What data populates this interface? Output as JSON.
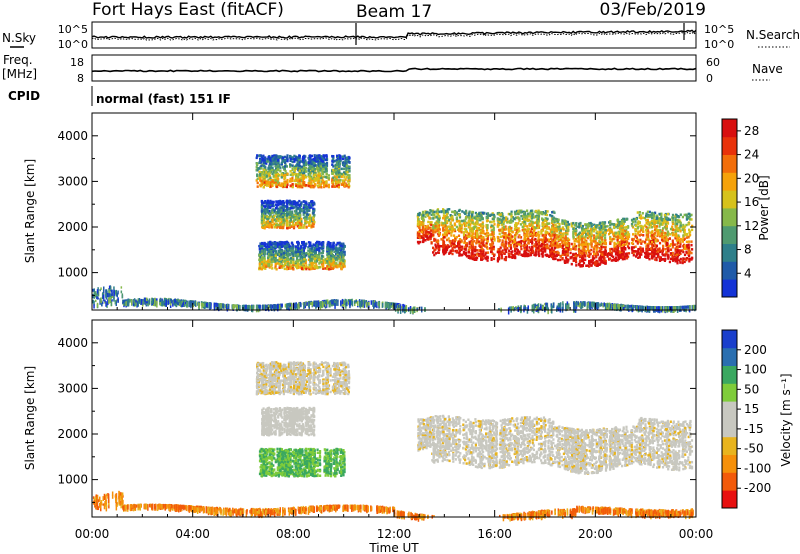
{
  "header": {
    "title": "Fort Hays East (fitACF)",
    "beam": "Beam 17",
    "date": "03/Feb/2019"
  },
  "status_panels": {
    "nsky_label": "N.Sky",
    "nsearch_label": "N.Search",
    "noise_ticks": [
      "10^5",
      "10^0"
    ],
    "freq_label_1": "Freq.",
    "freq_label_2": "[MHz]",
    "freq_ticks": [
      "18",
      "8"
    ],
    "nave_label": "Nave",
    "nave_ticks": [
      "60",
      "0"
    ],
    "cpid_label": "CPID",
    "cpid_value": "normal (fast) 151 IF"
  },
  "colors": {
    "power_scale": [
      "#1433d6",
      "#1f5aa8",
      "#2e7f8a",
      "#4f9a70",
      "#86b84a",
      "#d6c21c",
      "#f5a20a",
      "#f26e0a",
      "#e8320a",
      "#d80f0f"
    ],
    "velocity_scale": [
      "#e81010",
      "#f25a0a",
      "#f5900a",
      "#e8b41e",
      "#c8c8c0",
      "#c8c8c0",
      "#7fcc3a",
      "#3aa860",
      "#2a6fb0",
      "#1a3fcc"
    ]
  },
  "chart_data": [
    {
      "type": "heatmap",
      "name": "power-panel",
      "ylabel": "Slant Range [km]",
      "xlabel": "",
      "x_ticks": [
        "00:00",
        "04:00",
        "08:00",
        "12:00",
        "16:00",
        "20:00",
        "00:00"
      ],
      "x_range_hours": [
        0,
        24
      ],
      "y_ticks": [
        "1000",
        "2000",
        "3000",
        "4000"
      ],
      "y_range_km": [
        180,
        4500
      ],
      "colorbar_label": "Power [dB]",
      "colorbar_ticks": [
        "4",
        "8",
        "12",
        "16",
        "20",
        "24",
        "28"
      ],
      "colorbar_range": [
        0,
        30
      ],
      "echo_regions": [
        {
          "t_start": 6.5,
          "t_end": 10.2,
          "r_low": 2900,
          "r_high": 3600,
          "level": 0.5
        },
        {
          "t_start": 6.7,
          "t_end": 8.8,
          "r_low": 2000,
          "r_high": 2600,
          "level": 0.45
        },
        {
          "t_start": 6.6,
          "t_end": 10.0,
          "r_low": 1100,
          "r_high": 1700,
          "level": 0.45
        },
        {
          "t_start": 12.9,
          "t_end": 23.8,
          "r_low": 1150,
          "r_high": 2450,
          "level": 0.8
        },
        {
          "t_start": 0.0,
          "t_end": 24.0,
          "r_low": 180,
          "r_high": 400,
          "level": 0.35
        }
      ]
    },
    {
      "type": "heatmap",
      "name": "velocity-panel",
      "ylabel": "Slant Range [km]",
      "xlabel": "Time UT",
      "x_ticks": [
        "00:00",
        "04:00",
        "08:00",
        "12:00",
        "16:00",
        "20:00",
        "00:00"
      ],
      "x_range_hours": [
        0,
        24
      ],
      "y_ticks": [
        "1000",
        "2000",
        "3000",
        "4000"
      ],
      "y_range_km": [
        180,
        4500
      ],
      "colorbar_label": "Velocity [m s⁻¹]",
      "colorbar_ticks": [
        "200",
        "100",
        "50",
        "15",
        "-15",
        "-50",
        "-100",
        "-200"
      ],
      "colorbar_range": [
        -250,
        250
      ],
      "echo_regions": [
        {
          "t_start": 6.5,
          "t_end": 10.2,
          "r_low": 2900,
          "r_high": 3600,
          "level": 0.45
        },
        {
          "t_start": 6.7,
          "t_end": 8.8,
          "r_low": 2000,
          "r_high": 2600,
          "level": 0.5
        },
        {
          "t_start": 6.6,
          "t_end": 10.0,
          "r_low": 1100,
          "r_high": 1700,
          "level": 0.7
        },
        {
          "t_start": 12.9,
          "t_end": 23.8,
          "r_low": 1150,
          "r_high": 2450,
          "level": 0.47
        },
        {
          "t_start": 0.0,
          "t_end": 24.0,
          "r_low": 180,
          "r_high": 500,
          "level": 0.2
        }
      ]
    }
  ]
}
